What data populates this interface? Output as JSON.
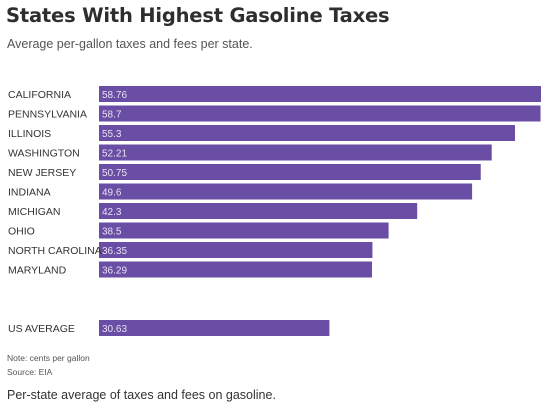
{
  "header": {
    "title": "States With Highest Gasoline Taxes",
    "subtitle": "Average per-gallon taxes and fees per state."
  },
  "footer": {
    "note": "Note: cents per gallon",
    "source": "Source: EIA",
    "caption": "Per-state average of taxes and fees on gasoline."
  },
  "colors": {
    "bar": "#6a4ea5"
  },
  "chart_data": {
    "type": "bar",
    "orientation": "horizontal",
    "title": "States With Highest Gasoline Taxes",
    "subtitle": "Average per-gallon taxes and fees per state.",
    "categories": [
      "CALIFORNIA",
      "PENNSYLVANIA",
      "ILLINOIS",
      "WASHINGTON",
      "NEW JERSEY",
      "INDIANA",
      "MICHIGAN",
      "OHIO",
      "NORTH CAROLINA",
      "MARYLAND",
      "US AVERAGE"
    ],
    "values": [
      58.76,
      58.7,
      55.3,
      52.21,
      50.75,
      49.6,
      42.3,
      38.5,
      36.35,
      36.29,
      30.63
    ],
    "value_labels": [
      "58.76",
      "58.7",
      "55.3",
      "52.21",
      "50.75",
      "49.6",
      "42.3",
      "38.5",
      "36.35",
      "36.29",
      "30.63"
    ],
    "unit": "cents per gallon",
    "grid": false,
    "legend": "none"
  }
}
